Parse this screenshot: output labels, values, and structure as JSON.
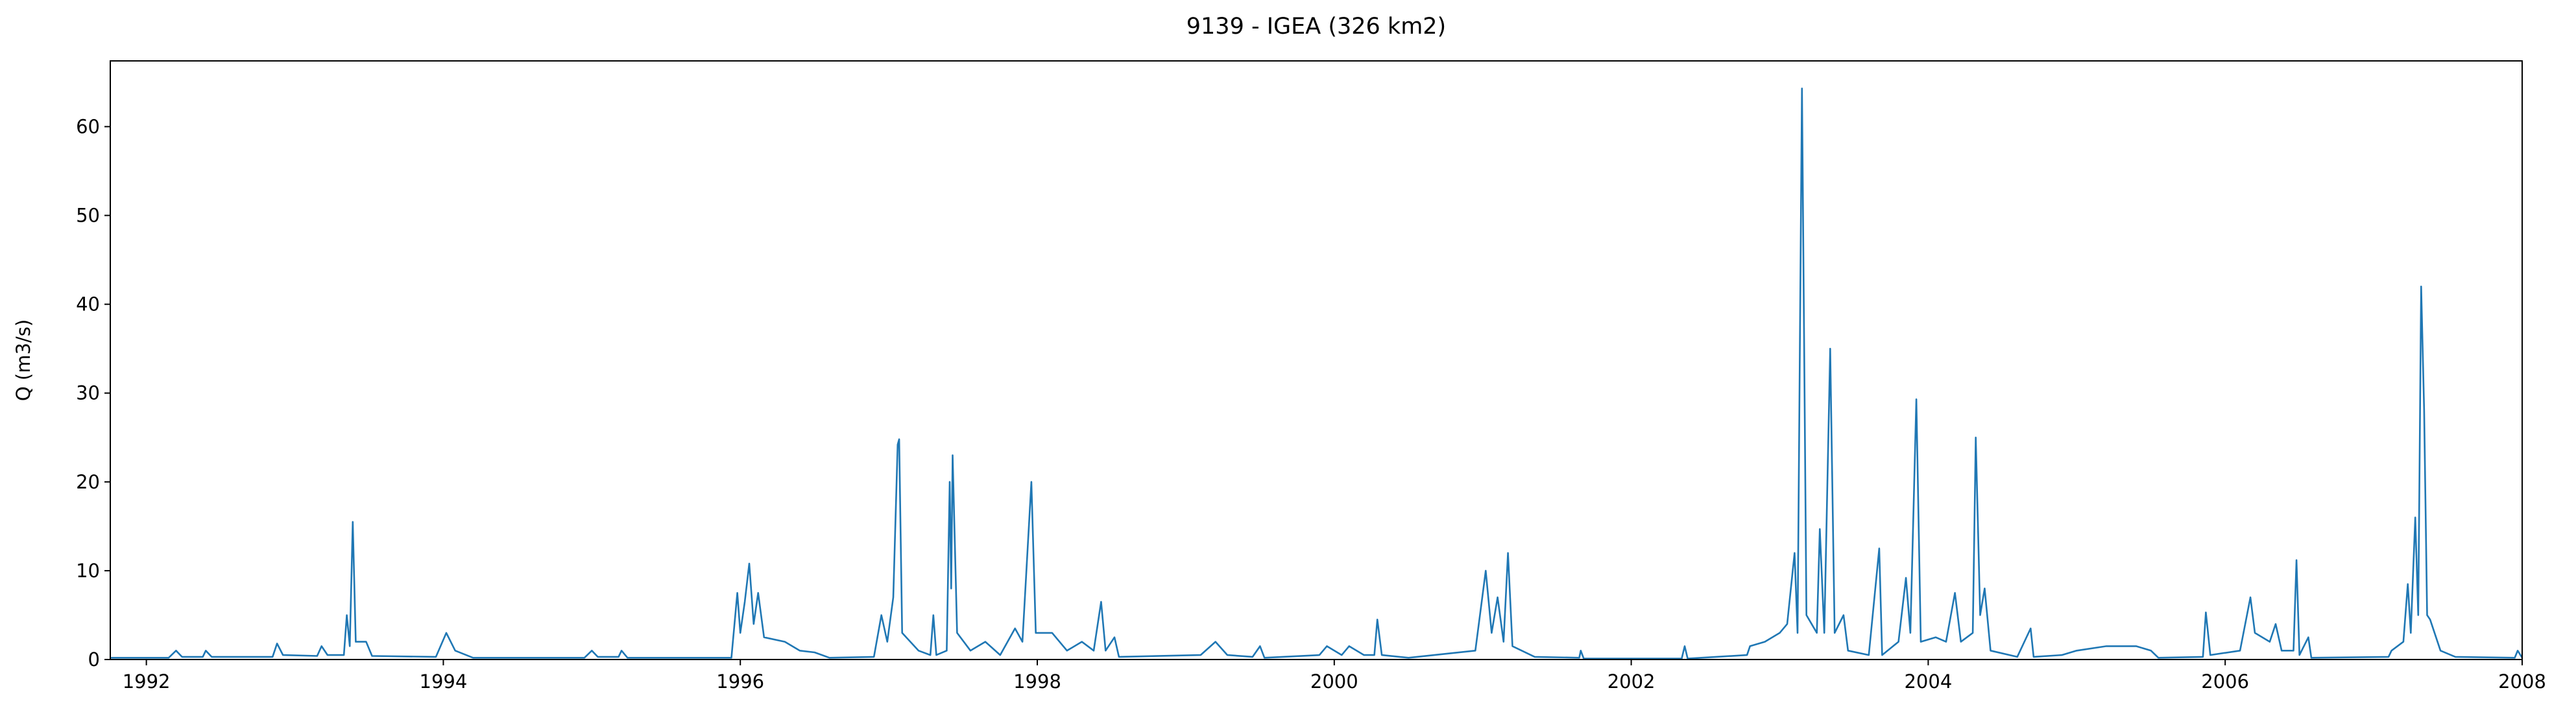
{
  "chart_data": {
    "type": "line",
    "title": "9139 - IGEA (326 km2)",
    "ylabel": "Q (m3/s)",
    "color": "#1f77b4",
    "xlim": [
      1991.757,
      2008.0
    ],
    "ylim": [
      0,
      67.4
    ],
    "xticks": [
      1992,
      1994,
      1996,
      1998,
      2000,
      2002,
      2004,
      2006,
      2008
    ],
    "yticks": [
      0,
      10,
      20,
      30,
      40,
      50,
      60
    ],
    "x": [
      1991.76,
      1992.15,
      1992.2,
      1992.24,
      1992.38,
      1992.4,
      1992.44,
      1992.85,
      1992.88,
      1992.92,
      1993.15,
      1993.18,
      1993.22,
      1993.33,
      1993.35,
      1993.37,
      1993.39,
      1993.41,
      1993.48,
      1993.52,
      1993.95,
      1994.02,
      1994.08,
      1994.2,
      1994.95,
      1995.0,
      1995.04,
      1995.18,
      1995.2,
      1995.24,
      1995.94,
      1995.98,
      1996.0,
      1996.03,
      1996.06,
      1996.09,
      1996.12,
      1996.16,
      1996.3,
      1996.4,
      1996.5,
      1996.6,
      1996.9,
      1996.95,
      1996.99,
      1997.03,
      1997.06,
      1997.07,
      1997.09,
      1997.2,
      1997.28,
      1997.3,
      1997.32,
      1997.39,
      1997.41,
      1997.42,
      1997.43,
      1997.46,
      1997.55,
      1997.65,
      1997.75,
      1997.85,
      1997.9,
      1997.96,
      1997.99,
      1998.1,
      1998.2,
      1998.3,
      1998.38,
      1998.43,
      1998.46,
      1998.52,
      1998.55,
      1999.1,
      1999.2,
      1999.28,
      1999.45,
      1999.5,
      1999.53,
      1999.9,
      1999.95,
      2000.05,
      2000.1,
      2000.2,
      2000.27,
      2000.29,
      2000.32,
      2000.5,
      2000.95,
      2001.02,
      2001.06,
      2001.1,
      2001.14,
      2001.17,
      2001.2,
      2001.35,
      2001.65,
      2001.66,
      2001.68,
      2002.34,
      2002.36,
      2002.38,
      2002.78,
      2002.8,
      2002.9,
      2003.0,
      2003.05,
      2003.1,
      2003.12,
      2003.15,
      2003.18,
      2003.25,
      2003.27,
      2003.3,
      2003.34,
      2003.37,
      2003.43,
      2003.46,
      2003.6,
      2003.67,
      2003.69,
      2003.8,
      2003.85,
      2003.88,
      2003.92,
      2003.95,
      2004.05,
      2004.12,
      2004.18,
      2004.22,
      2004.3,
      2004.32,
      2004.35,
      2004.38,
      2004.42,
      2004.6,
      2004.69,
      2004.71,
      2004.9,
      2005.0,
      2005.2,
      2005.4,
      2005.5,
      2005.55,
      2005.85,
      2005.87,
      2005.9,
      2006.1,
      2006.17,
      2006.2,
      2006.3,
      2006.34,
      2006.38,
      2006.46,
      2006.48,
      2006.5,
      2006.56,
      2006.58,
      2007.1,
      2007.12,
      2007.2,
      2007.23,
      2007.25,
      2007.28,
      2007.3,
      2007.32,
      2007.34,
      2007.36,
      2007.38,
      2007.45,
      2007.55,
      2007.95,
      2007.97,
      2008.0
    ],
    "values": [
      0.2,
      0.2,
      1.0,
      0.3,
      0.3,
      1.0,
      0.3,
      0.3,
      1.8,
      0.5,
      0.4,
      1.5,
      0.5,
      0.5,
      5,
      1.5,
      15.5,
      2,
      2,
      0.4,
      0.3,
      3,
      1,
      0.2,
      0.2,
      1,
      0.3,
      0.3,
      1,
      0.2,
      0.2,
      7.5,
      3,
      6.5,
      10.8,
      4,
      7.5,
      2.5,
      2,
      1,
      0.8,
      0.2,
      0.3,
      5,
      2,
      7,
      24.2,
      24.8,
      3,
      1,
      0.5,
      5,
      0.5,
      1,
      20,
      8,
      23,
      3,
      1,
      2,
      0.5,
      3.5,
      2,
      20,
      3,
      3,
      1,
      2,
      1,
      6.5,
      1,
      2.5,
      0.3,
      0.5,
      2,
      0.5,
      0.3,
      1.5,
      0.2,
      0.5,
      1.5,
      0.5,
      1.5,
      0.5,
      0.5,
      4.5,
      0.5,
      0.2,
      1,
      10,
      3,
      7,
      2,
      12,
      1.5,
      0.3,
      0.2,
      1,
      0.1,
      0.1,
      1.5,
      0.1,
      0.5,
      1.5,
      2,
      3,
      4,
      12,
      3,
      64.3,
      5,
      3,
      14.7,
      3,
      35,
      3,
      5,
      1,
      0.5,
      12.5,
      0.5,
      2,
      9.2,
      3,
      29.3,
      2,
      2.5,
      2,
      7.5,
      2,
      3,
      25,
      5,
      8,
      1,
      0.3,
      3.5,
      0.3,
      0.5,
      1,
      1.5,
      1.5,
      1,
      0.2,
      0.3,
      5.3,
      0.5,
      1,
      7,
      3,
      2,
      4,
      1,
      1,
      11.2,
      0.5,
      2.5,
      0.2,
      0.3,
      1,
      2,
      8.5,
      3,
      16,
      5,
      42,
      28,
      5,
      4.5,
      1,
      0.3,
      0.2,
      1,
      0.2
    ]
  }
}
